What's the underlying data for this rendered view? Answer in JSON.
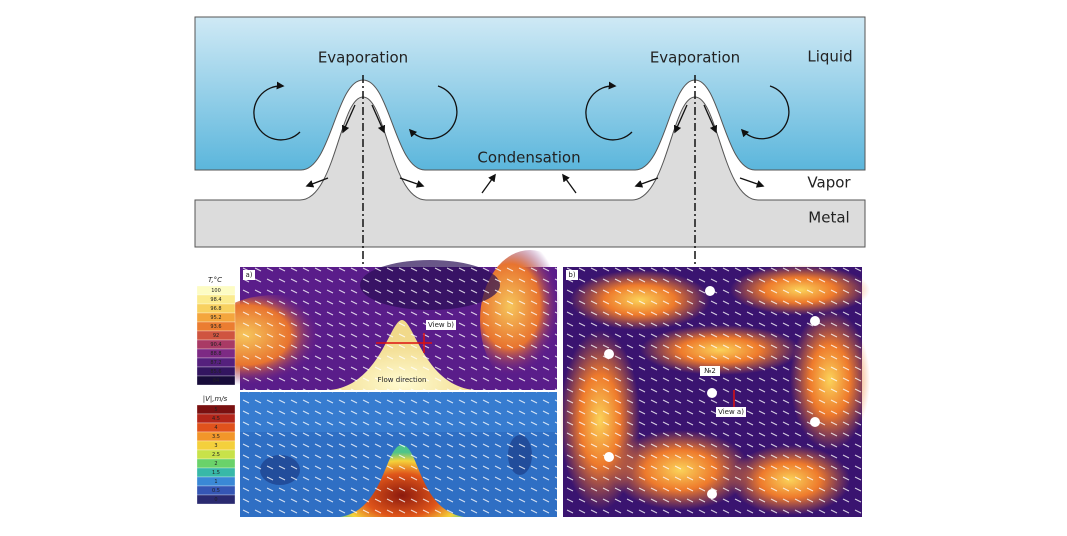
{
  "diagram": {
    "labels": {
      "evaporation_left": "Evaporation",
      "evaporation_right": "Evaporation",
      "liquid": "Liquid",
      "condensation": "Condensation",
      "vapor": "Vapor",
      "metal": "Metal"
    },
    "temperature_scale": {
      "title": "T,°C",
      "ticks": [
        "100",
        "98.4",
        "96.8",
        "95.2",
        "93.6",
        "92",
        "90.4",
        "88.8",
        "87.2",
        "85.6",
        "84"
      ]
    },
    "velocity_scale": {
      "title": "|V|,m/s",
      "ticks": [
        "5",
        "4.5",
        "4",
        "3.5",
        "3",
        "2.5",
        "2",
        "1.5",
        "1",
        "0.5",
        "0"
      ]
    },
    "panel_a": {
      "tag": "a)",
      "view_label": "View b)",
      "flow_label": "Flow direction"
    },
    "panel_b": {
      "tag": "b)",
      "site_label": "№2",
      "view_label": "View a)"
    }
  }
}
